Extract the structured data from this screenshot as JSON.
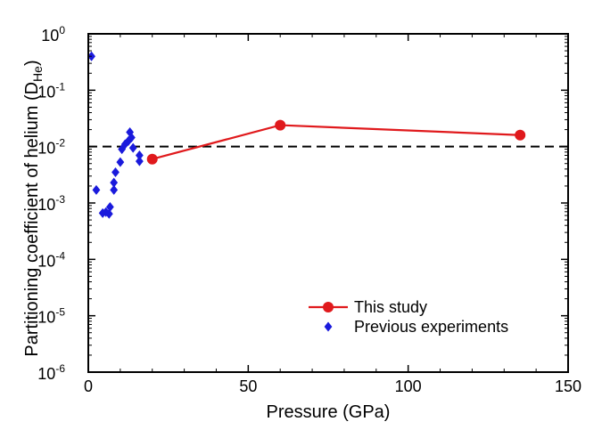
{
  "chart_data": {
    "type": "scatter",
    "title": "",
    "xlabel": "Pressure (GPa)",
    "ylabel": {
      "prefix": "Partitioning coefficient of helium (D",
      "subscript": "He",
      "suffix": ")"
    },
    "x_range": [
      0,
      150
    ],
    "x_ticks": [
      "0",
      "50",
      "100",
      "150"
    ],
    "y_scale": "log",
    "y_range": [
      1e-06,
      1
    ],
    "y_ticks": [
      {
        "base": "10",
        "exp": "-6"
      },
      {
        "base": "10",
        "exp": "-5"
      },
      {
        "base": "10",
        "exp": "-4"
      },
      {
        "base": "10",
        "exp": "-3"
      },
      {
        "base": "10",
        "exp": "-2"
      },
      {
        "base": "10",
        "exp": "-1"
      },
      {
        "base": "10",
        "exp": "0"
      }
    ],
    "reference_line": {
      "y": 0.01,
      "style": "dashed",
      "color": "#000000"
    },
    "legend_position": "bottom-right",
    "series": [
      {
        "name": "This study",
        "style": "line+circle",
        "color": "#e0191c",
        "points": [
          [
            20,
            0.006
          ],
          [
            60,
            0.024
          ],
          [
            135,
            0.016
          ]
        ]
      },
      {
        "name": "Previous experiments",
        "style": "diamond",
        "color": "#1a1adc",
        "points": [
          [
            1,
            0.4
          ],
          [
            2.5,
            0.0017
          ],
          [
            4.5,
            0.00066
          ],
          [
            5.5,
            0.00069
          ],
          [
            6.5,
            0.00064
          ],
          [
            6.8,
            0.00085
          ],
          [
            8,
            0.0017
          ],
          [
            8,
            0.0023
          ],
          [
            8.5,
            0.0035
          ],
          [
            10,
            0.0053
          ],
          [
            10.5,
            0.009
          ],
          [
            11.5,
            0.011
          ],
          [
            12.5,
            0.0125
          ],
          [
            13,
            0.018
          ],
          [
            13.5,
            0.0145
          ],
          [
            14,
            0.0095
          ],
          [
            16,
            0.0055
          ],
          [
            16,
            0.007
          ]
        ]
      }
    ]
  }
}
